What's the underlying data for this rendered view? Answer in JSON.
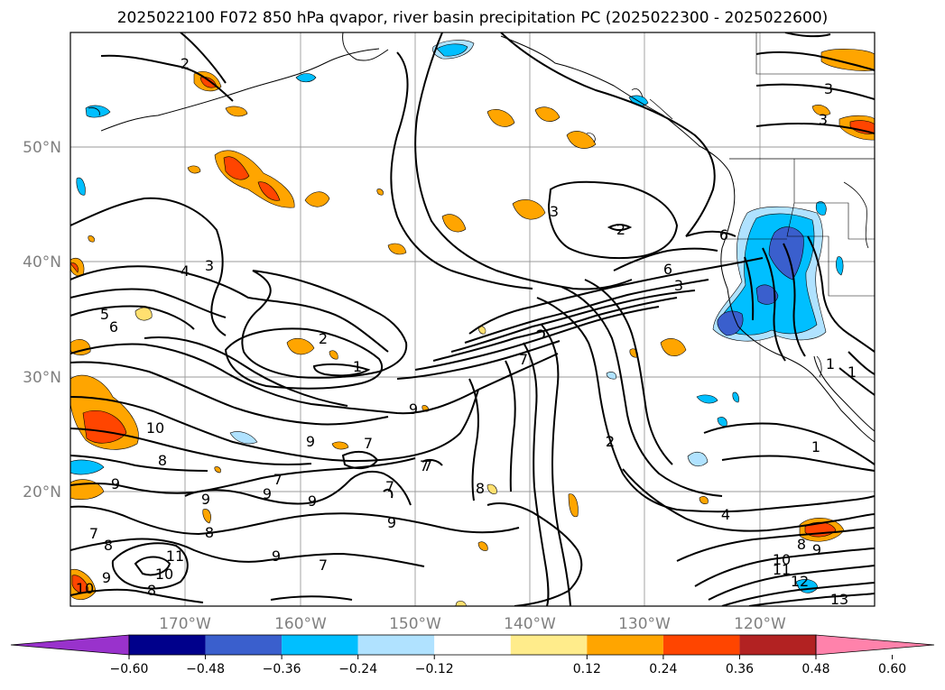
{
  "title": "2025022100 F072 850 hPa qvapor, river basin precipitation PC (2025022300 - 2025022600)",
  "map": {
    "lat_labels": [
      "50°N",
      "40°N",
      "30°N",
      "20°N"
    ],
    "lon_labels": [
      "170°W",
      "160°W",
      "150°W",
      "140°W",
      "130°W",
      "120°W"
    ],
    "extent": {
      "lon": [
        -180,
        -110
      ],
      "lat": [
        10,
        60
      ]
    }
  },
  "colorbar": {
    "ticks": [
      "−0.60",
      "−0.48",
      "−0.36",
      "−0.24",
      "−0.12",
      "0.12",
      "0.24",
      "0.36",
      "0.48",
      "0.60"
    ],
    "colors": [
      "#9932cc",
      "#00008b",
      "#3a5fcd",
      "#00bfff",
      "#b0e2ff",
      "#ffffff",
      "#ffec8b",
      "#ffa500",
      "#ff4500",
      "#b22222",
      "#ff82ab"
    ]
  },
  "contour_labels": [
    "2",
    "3",
    "3",
    "3",
    "2",
    "2",
    "3",
    "4",
    "5",
    "6",
    "6",
    "6",
    "3",
    "2",
    "1",
    "1",
    "7",
    "9",
    "10",
    "9",
    "7",
    "8",
    "9",
    "7",
    "9",
    "9",
    "8",
    "7",
    "8",
    "9",
    "9",
    "8",
    "7",
    "9",
    "10",
    "11",
    "8",
    "10",
    "7",
    "9",
    "2",
    "1",
    "4",
    "8",
    "9",
    "10",
    "11",
    "12",
    "13",
    "1",
    "7",
    "7"
  ]
}
